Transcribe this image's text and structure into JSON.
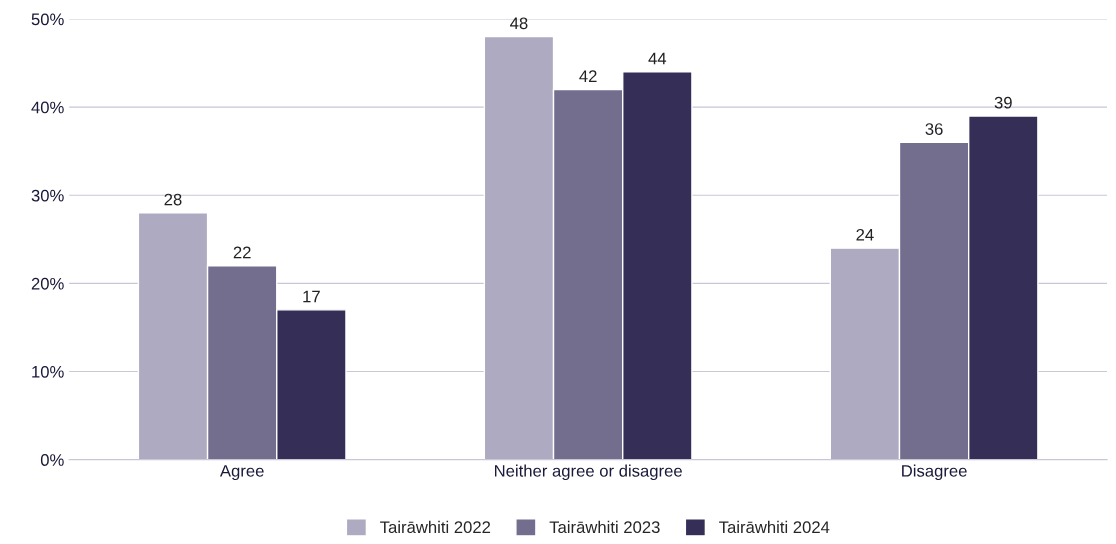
{
  "chart_data": {
    "type": "bar",
    "categories": [
      "Agree",
      "Neither agree or disagree",
      "Disagree"
    ],
    "series": [
      {
        "name": "Tairāwhiti 2022",
        "color": "#aeaac2",
        "values": [
          28,
          48,
          24
        ]
      },
      {
        "name": "Tairāwhiti 2023",
        "color": "#736d8e",
        "values": [
          22,
          42,
          36
        ]
      },
      {
        "name": "Tairāwhiti 2024",
        "color": "#352e57",
        "values": [
          17,
          44,
          39
        ]
      }
    ],
    "ylim": [
      0,
      50
    ],
    "yticks": [
      {
        "value": 0,
        "label": "0%"
      },
      {
        "value": 10,
        "label": "10%"
      },
      {
        "value": 20,
        "label": "20%"
      },
      {
        "value": 30,
        "label": "30%"
      },
      {
        "value": 40,
        "label": "40%"
      },
      {
        "value": 50,
        "label": "50%"
      }
    ],
    "grid": "y",
    "legend": "bottom",
    "data_labels": true
  }
}
